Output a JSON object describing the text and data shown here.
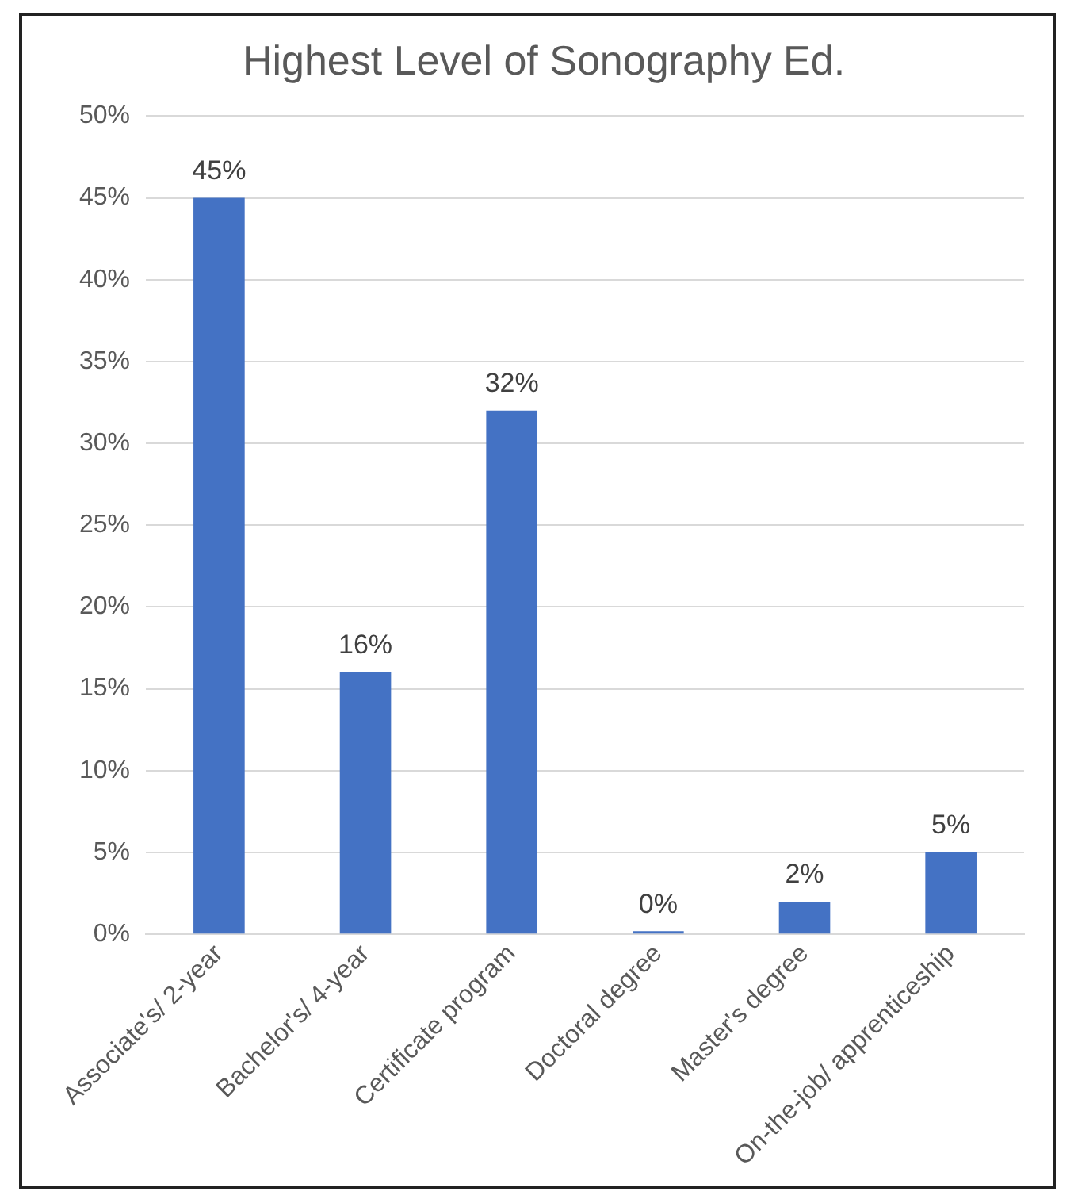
{
  "chart_data": {
    "type": "bar",
    "title": "Highest Level of Sonography Ed.",
    "categories": [
      "Associate's/ 2-year",
      "Bachelor's/ 4-year",
      "Certificate program",
      "Doctoral degree",
      "Master's degree",
      "On-the-job/ apprenticeship"
    ],
    "values": [
      45,
      16,
      32,
      0,
      2,
      5
    ],
    "value_labels": [
      "45%",
      "16%",
      "32%",
      "0%",
      "2%",
      "5%"
    ],
    "color": "#4472c4",
    "ylim": [
      0,
      50
    ],
    "yticks": [
      {
        "value": 0,
        "label": "0%"
      },
      {
        "value": 5,
        "label": "5%"
      },
      {
        "value": 10,
        "label": "10%"
      },
      {
        "value": 15,
        "label": "15%"
      },
      {
        "value": 20,
        "label": "20%"
      },
      {
        "value": 25,
        "label": "25%"
      },
      {
        "value": 30,
        "label": "30%"
      },
      {
        "value": 35,
        "label": "35%"
      },
      {
        "value": 40,
        "label": "40%"
      },
      {
        "value": 45,
        "label": "45%"
      },
      {
        "value": 50,
        "label": "50%"
      }
    ],
    "grid": "y"
  }
}
